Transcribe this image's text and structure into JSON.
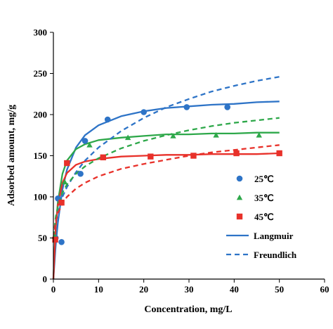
{
  "chart_data": {
    "type": "scatter",
    "title": "",
    "xlabel": "Concentration, mg/L",
    "ylabel": "Adsorbed  amount, mg/g",
    "xlim": [
      0,
      60
    ],
    "ylim": [
      0,
      300
    ],
    "x_ticks": [
      "0",
      "10",
      "20",
      "30",
      "40",
      "50",
      "60"
    ],
    "y_ticks": [
      "0",
      "50",
      "100",
      "150",
      "200",
      "250",
      "300"
    ],
    "grid": false,
    "legend_position": "right",
    "series": [
      {
        "name": "25℃",
        "kind": "points",
        "marker": "circle",
        "color": "#2e74c7",
        "x": [
          0.5,
          1.0,
          1.8,
          6.0,
          7.0,
          12.0,
          20.0,
          29.5,
          38.5
        ],
        "y": [
          50,
          98,
          45,
          128,
          168,
          194,
          203,
          209,
          209
        ]
      },
      {
        "name": "35℃",
        "kind": "points",
        "marker": "triangle",
        "color": "#2ea84a",
        "x": [
          0.3,
          1.5,
          2.5,
          8.0,
          16.5,
          26.5,
          36.0,
          45.5
        ],
        "y": [
          52,
          95,
          118,
          163,
          172,
          174,
          175,
          175
        ]
      },
      {
        "name": "45℃",
        "kind": "points",
        "marker": "square",
        "color": "#e8312a",
        "x": [
          0.4,
          1.8,
          3.0,
          11.0,
          21.5,
          31.0,
          40.5,
          50.0
        ],
        "y": [
          48,
          93,
          141,
          148,
          149,
          150,
          153,
          153
        ]
      },
      {
        "name": "Langmuir",
        "kind": "line",
        "dash": false,
        "curves": [
          {
            "color": "#2e74c7",
            "x": [
              0,
              0.5,
              1,
              2,
              3,
              5,
              7,
              10,
              15,
              20,
              25,
              30,
              35,
              40,
              45,
              50
            ],
            "y": [
              0,
              40,
              69,
              109,
              133,
              160,
              175,
              187,
              198,
              204,
              208,
              210,
              212,
              213,
              215,
              216
            ]
          },
          {
            "color": "#2ea84a",
            "x": [
              0,
              0.5,
              1,
              2,
              3,
              5,
              7,
              10,
              15,
              20,
              25,
              30,
              35,
              40,
              45,
              50
            ],
            "y": [
              0,
              62,
              94,
              128,
              144,
              158,
              164,
              169,
              172,
              174,
              176,
              176,
              177,
              177,
              178,
              178
            ]
          },
          {
            "color": "#e8312a",
            "x": [
              0,
              0.5,
              1,
              2,
              3,
              5,
              7,
              10,
              15,
              20,
              25,
              30,
              35,
              40,
              45,
              50
            ],
            "y": [
              0,
              62,
              90,
              117,
              129,
              139,
              143,
              146,
              149,
              150,
              151,
              151,
              152,
              152,
              152,
              153
            ]
          }
        ]
      },
      {
        "name": "Freundlich",
        "kind": "line",
        "dash": true,
        "curves": [
          {
            "color": "#2e74c7",
            "x": [
              0.1,
              0.5,
              1,
              2,
              3,
              5,
              7,
              10,
              15,
              20,
              25,
              30,
              35,
              40,
              45,
              50
            ],
            "y": [
              50,
              68,
              80,
              100,
              112,
              130,
              144,
              160,
              180,
              196,
              209,
              219,
              228,
              235,
              241,
              246
            ]
          },
          {
            "color": "#2ea84a",
            "x": [
              0.1,
              0.5,
              1,
              2,
              3,
              5,
              7,
              10,
              15,
              20,
              25,
              30,
              35,
              40,
              45,
              50
            ],
            "y": [
              52,
              75,
              88,
              105,
              115,
              128,
              137,
              147,
              159,
              168,
              175,
              181,
              186,
              190,
              193,
              196
            ]
          },
          {
            "color": "#e8312a",
            "x": [
              0.1,
              0.5,
              1,
              2,
              3,
              5,
              7,
              10,
              15,
              20,
              25,
              30,
              35,
              40,
              45,
              50
            ],
            "y": [
              50,
              70,
              80,
              92,
              100,
              110,
              117,
              125,
              134,
              140,
              145,
              150,
              154,
              157,
              160,
              163
            ]
          }
        ]
      }
    ]
  }
}
